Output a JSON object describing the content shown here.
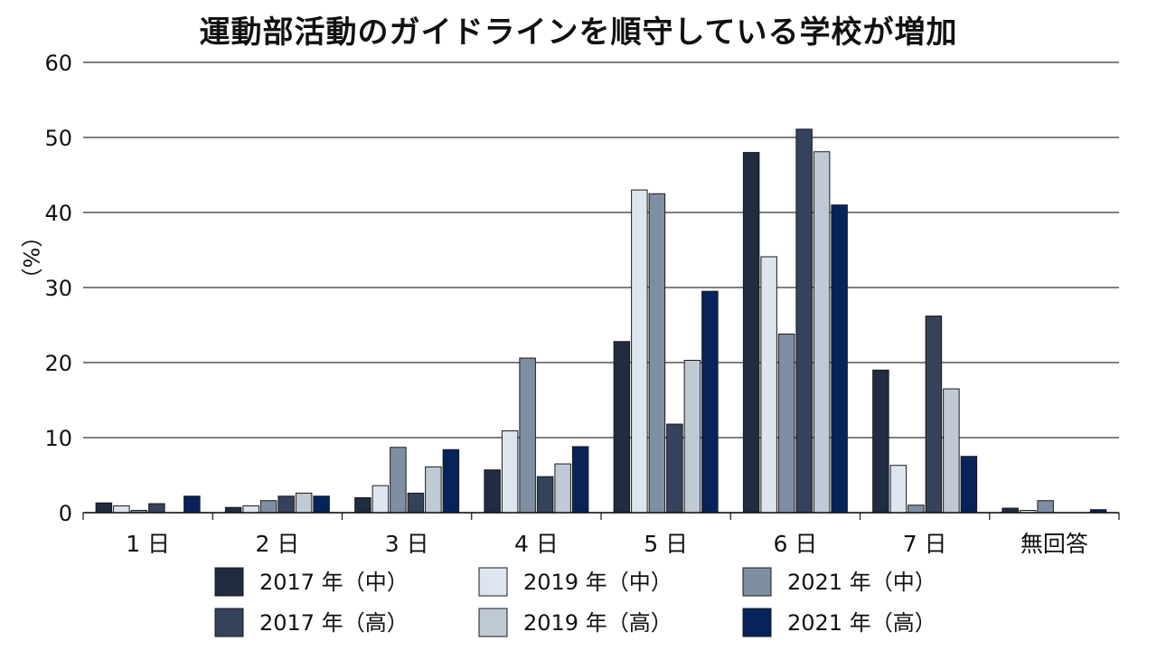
{
  "chart_data": {
    "type": "bar",
    "title": "運動部活動のガイドラインを順守している学校が増加",
    "ylabel": "（%）",
    "xlabel": "",
    "ylim": [
      0,
      60
    ],
    "yticks": [
      0,
      10,
      20,
      30,
      40,
      50,
      60
    ],
    "grid": true,
    "legend_position": "bottom",
    "categories": [
      "1 日",
      "2 日",
      "3 日",
      "4 日",
      "5 日",
      "6 日",
      "7 日",
      "無回答"
    ],
    "series": [
      {
        "name": "2017 年（中）",
        "color": "#1f2c42",
        "values": [
          1.3,
          0.7,
          2.0,
          5.7,
          22.8,
          48.0,
          19.0,
          0.6
        ]
      },
      {
        "name": "2019 年（中）",
        "color": "#dde6ef",
        "values": [
          0.9,
          0.9,
          3.6,
          10.9,
          43.0,
          34.1,
          6.3,
          0.3
        ]
      },
      {
        "name": "2021 年（中）",
        "color": "#7f8fa3",
        "values": [
          0.3,
          1.6,
          8.7,
          20.6,
          42.5,
          23.8,
          1.0,
          1.6
        ]
      },
      {
        "name": "2017 年（高）",
        "color": "#34435b",
        "values": [
          1.2,
          2.2,
          2.6,
          4.8,
          11.8,
          51.1,
          26.2,
          0.0
        ]
      },
      {
        "name": "2019 年（高）",
        "color": "#bfcad5",
        "values": [
          0.0,
          2.6,
          6.1,
          6.5,
          20.3,
          48.1,
          16.5,
          0.0
        ]
      },
      {
        "name": "2021 年（高）",
        "color": "#06245a",
        "values": [
          2.2,
          2.2,
          8.4,
          8.8,
          29.5,
          41.0,
          7.5,
          0.4
        ]
      }
    ]
  }
}
